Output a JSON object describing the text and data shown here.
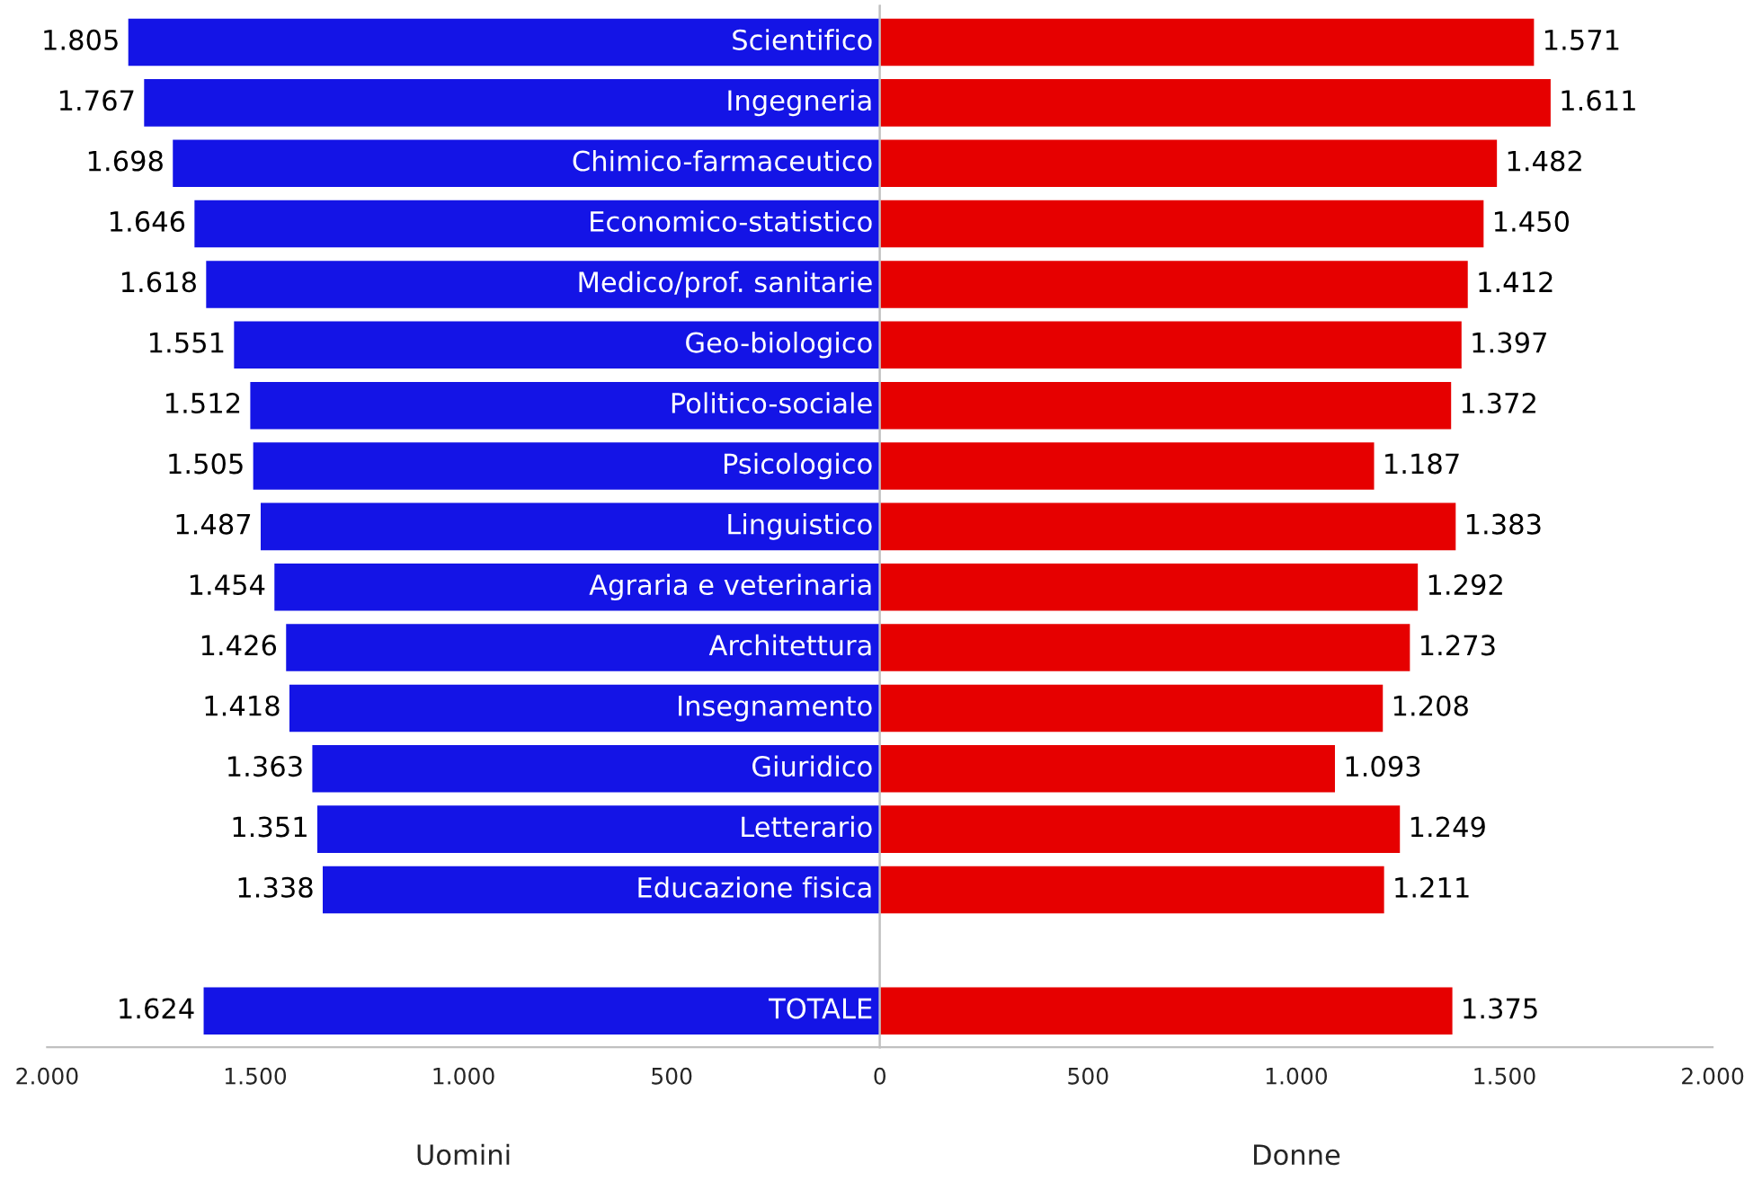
{
  "chart_data": [
    {
      "type": "bar",
      "orientation": "horizontal",
      "grid": false,
      "xlabel": "Uomini",
      "categories": [
        "Scientifico",
        "Ingegneria",
        "Chimico-farmaceutico",
        "Economico-statistico",
        "Medico/prof. sanitarie",
        "Geo-biologico",
        "Politico-sociale",
        "Psicologico",
        "Linguistico",
        "Agraria e veterinaria",
        "Architettura",
        "Insegnamento",
        "Giuridico",
        "Letterario",
        "Educazione fisica",
        null,
        "TOTALE"
      ],
      "series": [
        {
          "color": "#1414e6",
          "values": [
            1805,
            1767,
            1698,
            1646,
            1618,
            1551,
            1512,
            1505,
            1487,
            1454,
            1426,
            1418,
            1363,
            1351,
            1338,
            null,
            1624
          ],
          "value_labels": [
            "1.805",
            "1.767",
            "1.698",
            "1.646",
            "1.618",
            "1.551",
            "1.512",
            "1.505",
            "1.487",
            "1.454",
            "1.426",
            "1.418",
            "1.363",
            "1.351",
            "1.338",
            null,
            "1.624"
          ]
        }
      ],
      "xlim": [
        2000,
        0
      ],
      "xticks": [
        {
          "value": 2000,
          "label": "2.000"
        },
        {
          "value": 1500,
          "label": "1.500"
        },
        {
          "value": 1000,
          "label": "1.000"
        },
        500
      ]
    },
    {
      "type": "bar",
      "orientation": "horizontal",
      "grid": false,
      "xlabel": "Donne",
      "tick_labels": "x",
      "categories": [
        null,
        null,
        null,
        null,
        null,
        null,
        null,
        null,
        null,
        null,
        null,
        null,
        null,
        null,
        null,
        null,
        null
      ],
      "series": [
        {
          "color": "#e60000",
          "values": [
            1571,
            1611,
            1482,
            1450,
            1412,
            1397,
            1372,
            1187,
            1383,
            1292,
            1273,
            1208,
            1093,
            1249,
            1211,
            null,
            1375
          ],
          "value_labels": [
            "1.571",
            "1.611",
            "1.482",
            "1.450",
            "1.412",
            "1.397",
            "1.372",
            "1.187",
            "1.383",
            "1.292",
            "1.273",
            "1.208",
            "1.093",
            "1.249",
            "1.211",
            null,
            "1.375"
          ]
        }
      ],
      "xlim": [
        0,
        2000
      ],
      "xticks": [
        0,
        500,
        {
          "value": 1000,
          "label": "1.000"
        },
        {
          "value": 1500,
          "label": "1.500"
        },
        {
          "value": 2000,
          "label": "2.000"
        }
      ]
    }
  ]
}
